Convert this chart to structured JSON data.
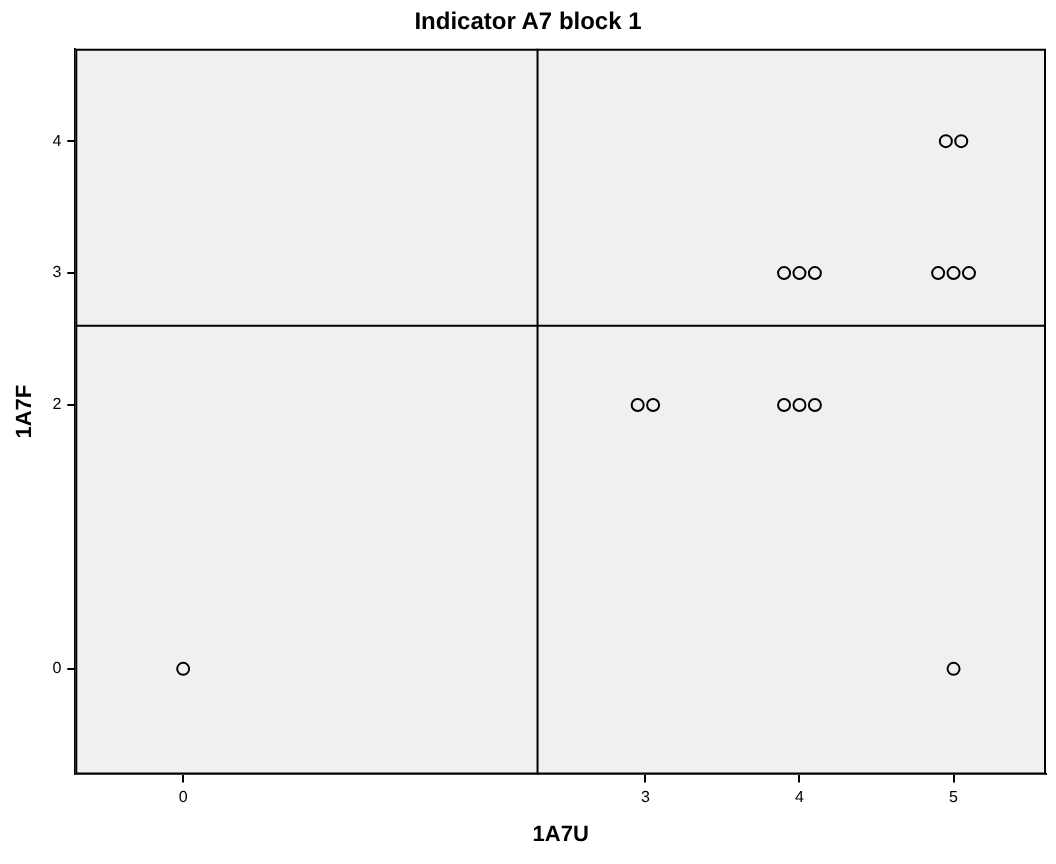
{
  "chart_data": {
    "type": "scatter",
    "title": "Indicator A7 block 1",
    "xlabel": "1A7U",
    "ylabel": "1A7F",
    "xlim": [
      -0.7,
      5.6
    ],
    "xticks": [
      0,
      3,
      4,
      5
    ],
    "ylim": [
      -0.8,
      4.7
    ],
    "yticks": [
      0,
      2,
      3,
      4
    ],
    "series": [
      {
        "color": "#000000",
        "x": [
          0,
          2.95,
          3.05,
          3.9,
          4,
          4.1,
          3.9,
          4,
          4.1,
          4.95,
          5.05,
          4.9,
          5,
          5.1,
          5
        ],
        "values": [
          0,
          2,
          2,
          3,
          3,
          3,
          2,
          2,
          2,
          4,
          4,
          3,
          3,
          3,
          0
        ]
      }
    ],
    "ref_lines": [
      {
        "axis": "x",
        "value": 2.3,
        "color": "#000000"
      },
      {
        "axis": "y",
        "value": 2.6,
        "color": "#000000"
      }
    ],
    "marker": "circle",
    "grid": false,
    "legend": false
  }
}
